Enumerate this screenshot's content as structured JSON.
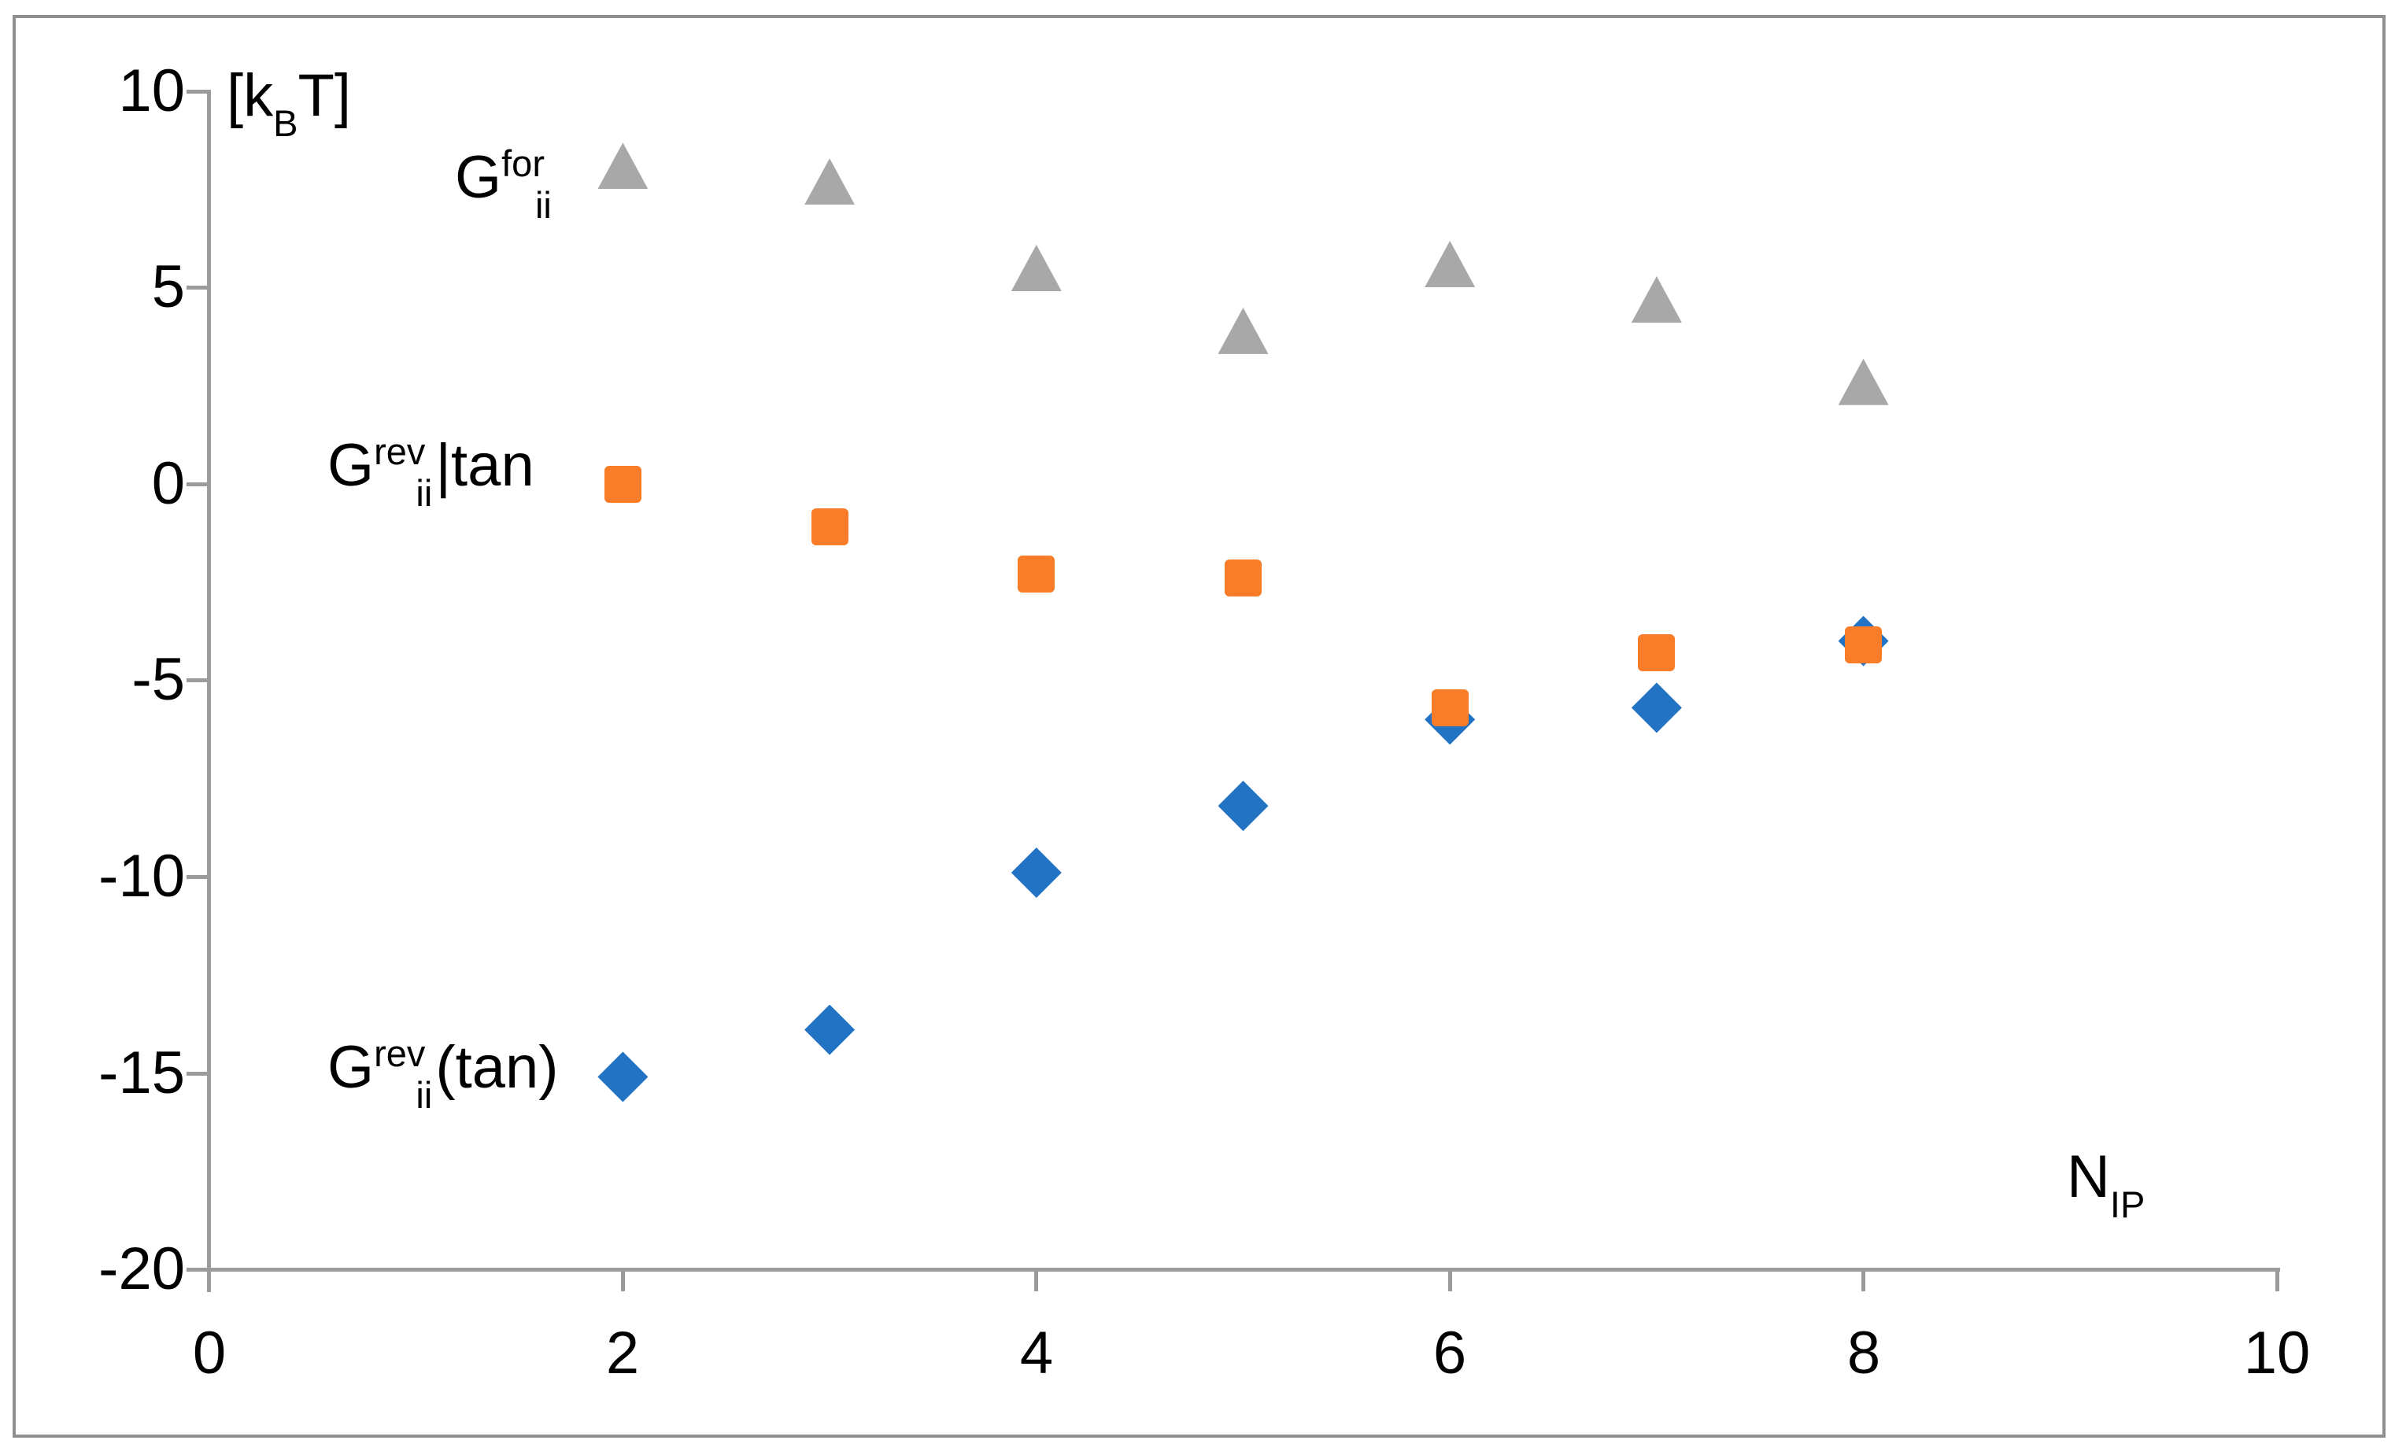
{
  "y_unit_label": {
    "open": "[k",
    "sub": "B",
    "close": "T]"
  },
  "x_axis_label": {
    "base": "N",
    "sub": "IP"
  },
  "series_labels": {
    "gfor": {
      "base": "G",
      "sup": "for",
      "sub": "ii",
      "suffix": ""
    },
    "grev_bar": {
      "base": "G",
      "sup": "rev",
      "sub": "ii",
      "suffix": "|tan"
    },
    "grev_paren": {
      "base": "G",
      "sup": "rev",
      "sub": "ii",
      "suffix": "(tan)"
    }
  },
  "axes": {
    "x": {
      "ticks": [
        "0",
        "2",
        "4",
        "6",
        "8",
        "10"
      ]
    },
    "y": {
      "ticks": [
        "10",
        "5",
        "0",
        "-5",
        "-10",
        "-15",
        "-20"
      ]
    }
  },
  "colors": {
    "gray_marker": "#a8a8a8",
    "orange_marker": "#f97d28",
    "blue_marker": "#2273c3",
    "axis": "#9b9b9b"
  },
  "chart_data": {
    "type": "scatter",
    "title": "",
    "xlabel": "N_IP",
    "ylabel": "[k_B T]",
    "xlim": [
      0,
      10
    ],
    "ylim": [
      -20,
      10
    ],
    "x_tick_values": [
      0,
      2,
      4,
      6,
      8,
      10
    ],
    "y_tick_values": [
      10,
      5,
      0,
      -5,
      -10,
      -15,
      -20
    ],
    "grid": false,
    "legend_position": "inline-annotations",
    "series": [
      {
        "name": "G_for_ii",
        "marker": "triangle",
        "color": "#a8a8a8",
        "points": [
          [
            2,
            8.1
          ],
          [
            3,
            7.7
          ],
          [
            4,
            5.5
          ],
          [
            5,
            3.9
          ],
          [
            6,
            5.6
          ],
          [
            7,
            4.7
          ],
          [
            8,
            2.6
          ]
        ]
      },
      {
        "name": "G_rev_ii|tan",
        "marker": "square",
        "color": "#f97d28",
        "points": [
          [
            2,
            0.0
          ],
          [
            3,
            -1.1
          ],
          [
            4,
            -2.3
          ],
          [
            5,
            -2.4
          ],
          [
            6,
            -5.7
          ],
          [
            7,
            -4.3
          ],
          [
            8,
            -4.1
          ]
        ]
      },
      {
        "name": "G_rev_ii(tan)",
        "marker": "diamond",
        "color": "#2273c3",
        "points": [
          [
            2,
            -15.1
          ],
          [
            3,
            -13.9
          ],
          [
            4,
            -9.9
          ],
          [
            5,
            -8.2
          ],
          [
            6,
            -6.0
          ],
          [
            7,
            -5.7
          ],
          [
            8,
            -4.0
          ]
        ]
      }
    ]
  }
}
